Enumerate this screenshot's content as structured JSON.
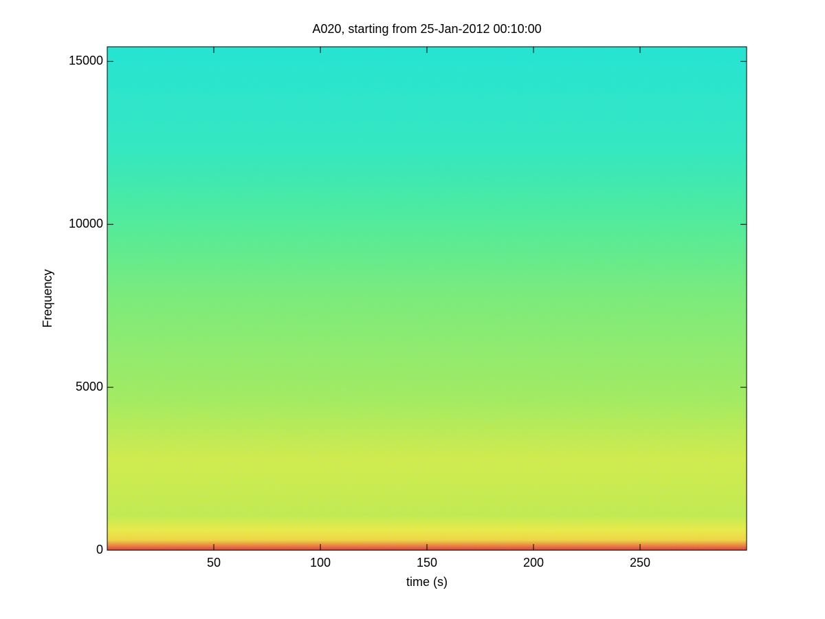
{
  "chart_data": {
    "type": "spectrogram",
    "title": "A020, starting from 25-Jan-2012 00:10:00",
    "x_label": "time (s)",
    "y_label": "Frequency",
    "xlim": [
      0,
      300
    ],
    "xticks": [
      50,
      100,
      150,
      200,
      250
    ],
    "ylim": [
      0,
      15450
    ],
    "yticks": [
      0,
      5000,
      10000,
      15000
    ],
    "grid": false
  }
}
